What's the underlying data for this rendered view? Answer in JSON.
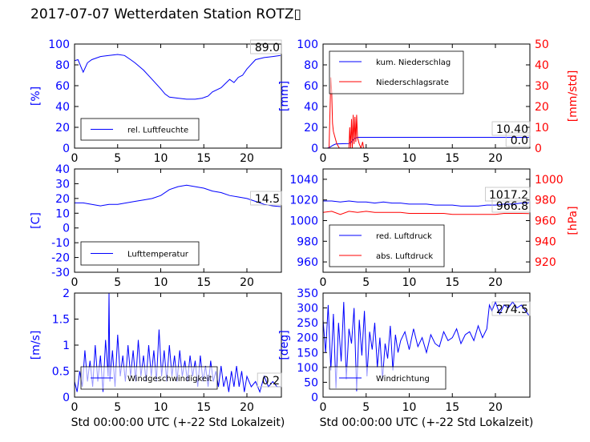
{
  "figure": {
    "title": "2017-07-07 Wetterdaten Station ROTZ▯",
    "colors": {
      "left_axis": "#0000ff",
      "right_axis": "#ff0000",
      "frame": "#000000"
    }
  },
  "chart_data": [
    {
      "id": "humidity",
      "type": "line",
      "ylabel": "[%]",
      "xlim": [
        0,
        24
      ],
      "ylim": [
        0,
        100
      ],
      "xticks": [
        0,
        5,
        10,
        15,
        20
      ],
      "yticks": [
        0,
        20,
        40,
        60,
        80,
        100
      ],
      "legend": {
        "placement": "lower-left",
        "entries": [
          "rel. Luftfeuchte"
        ]
      },
      "annotations": [
        "89.0"
      ],
      "series": [
        {
          "name": "rel. Luftfeuchte",
          "color": "#0000ff",
          "x": [
            0,
            0.4,
            0.8,
            1.0,
            1.5,
            2,
            3,
            4,
            5,
            5.8,
            6.5,
            7,
            8,
            9,
            10,
            10.5,
            11,
            12,
            13,
            14,
            14.8,
            15.5,
            16,
            17,
            17.5,
            18,
            18.5,
            19,
            19.5,
            20,
            21,
            22,
            23,
            23.9
          ],
          "y": [
            84,
            85,
            77,
            73,
            82,
            85,
            88,
            89,
            90,
            89,
            85,
            82,
            75,
            66,
            57,
            52,
            49,
            48,
            47,
            47,
            48,
            50,
            54,
            58,
            62,
            66,
            63,
            68,
            70,
            76,
            85,
            87,
            88,
            89
          ]
        }
      ]
    },
    {
      "id": "precipitation",
      "type": "line",
      "ylabel": "[mm]",
      "y2label": "[mm/std]",
      "xlim": [
        0,
        24
      ],
      "ylim": [
        0,
        100
      ],
      "y2lim": [
        0,
        50
      ],
      "xticks": [
        0,
        5,
        10,
        15,
        20
      ],
      "yticks": [
        0,
        20,
        40,
        60,
        80,
        100
      ],
      "y2ticks": [
        0,
        10,
        20,
        30,
        40,
        50
      ],
      "legend": {
        "placement": "top-left",
        "entries": [
          "kum. Niederschlag",
          "Niederschlagsrate"
        ]
      },
      "annotations": [
        "10.40",
        "0.0"
      ],
      "series": [
        {
          "name": "kum. Niederschlag",
          "color": "#0000ff",
          "axis": "left",
          "x": [
            0,
            0.5,
            0.8,
            1.2,
            1.5,
            3,
            3.3,
            3.6,
            4,
            5,
            10,
            15,
            20,
            23.9
          ],
          "y": [
            0,
            0,
            1,
            3,
            4,
            4.5,
            6,
            9,
            10.4,
            10.4,
            10.4,
            10.4,
            10.4,
            10.4
          ]
        },
        {
          "name": "Niederschlagsrate",
          "color": "#ff0000",
          "axis": "right",
          "x": [
            0,
            0.7,
            0.9,
            1.0,
            1.1,
            1.2,
            1.4,
            1.6,
            1.9,
            2.0,
            2.2,
            2.5,
            3.0,
            3.1,
            3.2,
            3.3,
            3.4,
            3.5,
            3.6,
            3.7,
            3.8,
            3.9,
            4.0,
            4.2,
            4.4,
            4.6,
            4.7,
            4.8,
            5,
            23.9
          ],
          "y": [
            0,
            0,
            34,
            27,
            12,
            8,
            5,
            2,
            0,
            0,
            0,
            0,
            0,
            10,
            0,
            14,
            0,
            16,
            2,
            15,
            3,
            16,
            5,
            2,
            0,
            3,
            0,
            0,
            0,
            0
          ]
        }
      ]
    },
    {
      "id": "temperature",
      "type": "line",
      "ylabel": "[C]",
      "xlim": [
        0,
        24
      ],
      "ylim": [
        -30,
        40
      ],
      "xticks": [
        0,
        5,
        10,
        15,
        20
      ],
      "yticks": [
        -30,
        -20,
        -10,
        0,
        10,
        20,
        30,
        40
      ],
      "legend": {
        "placement": "lower-left",
        "entries": [
          "Lufttemperatur"
        ]
      },
      "annotations": [
        "14.5"
      ],
      "series": [
        {
          "name": "Lufttemperatur",
          "color": "#0000ff",
          "x": [
            0,
            1,
            2,
            3,
            4,
            5,
            6,
            7,
            8,
            9,
            10,
            11,
            12,
            13,
            14,
            15,
            16,
            17,
            18,
            19,
            20,
            21,
            22,
            23,
            23.9
          ],
          "y": [
            17,
            17,
            16,
            15,
            16,
            16,
            17,
            18,
            19,
            20,
            22,
            26,
            28,
            29,
            28,
            27,
            25,
            24,
            22,
            21,
            20,
            18,
            16,
            15,
            14.5
          ]
        }
      ]
    },
    {
      "id": "pressure",
      "type": "line",
      "y2label": "[hPa]",
      "xlim": [
        0,
        24
      ],
      "ylim": [
        950,
        1050
      ],
      "y2lim": [
        910,
        1010
      ],
      "xticks": [
        0,
        5,
        10,
        15,
        20
      ],
      "yticks": [
        960,
        980,
        1000,
        1020,
        1040
      ],
      "y2ticks": [
        920,
        940,
        960,
        980,
        1000
      ],
      "legend": {
        "placement": "lower-left",
        "entries": [
          "red. Luftdruck",
          "abs. Luftdruck"
        ]
      },
      "annotations": [
        "1017.2",
        "966.8"
      ],
      "series": [
        {
          "name": "red. Luftdruck",
          "color": "#0000ff",
          "axis": "left",
          "x": [
            0,
            1,
            2,
            3,
            4,
            5,
            6,
            7,
            8,
            9,
            10,
            11,
            12,
            13,
            14,
            15,
            16,
            17,
            18,
            19,
            20,
            21,
            22,
            23,
            23.9
          ],
          "y": [
            1019,
            1019,
            1018,
            1019,
            1018,
            1018,
            1017,
            1018,
            1017,
            1017,
            1016,
            1016,
            1016,
            1015,
            1015,
            1015,
            1014,
            1014,
            1014,
            1015,
            1015,
            1016,
            1016,
            1017,
            1017.2
          ]
        },
        {
          "name": "abs. Luftdruck",
          "color": "#ff0000",
          "axis": "right",
          "x": [
            0,
            1,
            2,
            3,
            4,
            5,
            6,
            7,
            8,
            9,
            10,
            11,
            12,
            13,
            14,
            15,
            16,
            17,
            18,
            19,
            20,
            21,
            22,
            23,
            23.9
          ],
          "y": [
            968,
            969,
            966,
            969,
            968,
            969,
            968,
            968,
            968,
            968,
            967,
            967,
            967,
            967,
            967,
            966,
            966,
            966,
            966,
            966,
            966,
            967,
            967,
            967,
            966.8
          ]
        }
      ]
    },
    {
      "id": "wind-speed",
      "type": "line",
      "ylabel": "[m/s]",
      "xlabel": "Std 00:00:00 UTC (+-22 Std Lokalzeit)",
      "xlim": [
        0,
        24
      ],
      "ylim": [
        0,
        2.0
      ],
      "xticks": [
        0,
        5,
        10,
        15,
        20
      ],
      "yticks": [
        0.0,
        0.5,
        1.0,
        1.5,
        2.0
      ],
      "legend": {
        "placement": "lower-left",
        "entries": [
          "Windgeschwindigkeit"
        ]
      },
      "annotations": [
        "0.2"
      ],
      "series": [
        {
          "name": "Windgeschwindigkeit",
          "color": "#0000ff",
          "x": [
            0,
            0.3,
            0.6,
            0.9,
            1.2,
            1.5,
            1.8,
            2.1,
            2.4,
            2.7,
            3.0,
            3.3,
            3.6,
            3.9,
            4.0,
            4.1,
            4.4,
            4.7,
            5.0,
            5.3,
            5.6,
            5.9,
            6.2,
            6.5,
            6.8,
            7.1,
            7.4,
            7.7,
            8.0,
            8.3,
            8.6,
            8.9,
            9.2,
            9.5,
            9.8,
            10.1,
            10.4,
            10.7,
            11.0,
            11.3,
            11.6,
            11.9,
            12.2,
            12.5,
            12.8,
            13.1,
            13.4,
            13.7,
            14.0,
            14.3,
            14.6,
            14.9,
            15.2,
            15.5,
            15.8,
            16.1,
            16.4,
            16.7,
            17.0,
            17.3,
            17.6,
            17.9,
            18.2,
            18.5,
            18.8,
            19.1,
            19.4,
            19.7,
            20.0,
            20.5,
            21.0,
            21.5,
            22.0,
            22.5,
            23.0,
            23.5,
            23.9
          ],
          "y": [
            0.3,
            0.1,
            0.5,
            0.2,
            0.9,
            0.3,
            0.7,
            0.2,
            1.0,
            0.3,
            0.8,
            0.1,
            1.1,
            0.4,
            2.0,
            0.3,
            0.9,
            0.2,
            1.2,
            0.4,
            0.8,
            0.3,
            1.0,
            0.4,
            0.9,
            0.3,
            1.1,
            0.4,
            0.8,
            0.3,
            1.0,
            0.4,
            0.9,
            0.3,
            1.3,
            0.4,
            0.9,
            0.3,
            1.0,
            0.4,
            0.8,
            0.3,
            0.9,
            0.4,
            0.7,
            0.3,
            0.8,
            0.4,
            0.7,
            0.2,
            0.8,
            0.3,
            0.6,
            0.2,
            0.7,
            0.3,
            0.5,
            0.2,
            0.6,
            0.2,
            0.4,
            0.1,
            0.5,
            0.2,
            0.6,
            0.2,
            0.5,
            0.1,
            0.4,
            0.2,
            0.3,
            0.1,
            0.4,
            0.2,
            0.3,
            0.2,
            0.2
          ]
        }
      ]
    },
    {
      "id": "wind-direction",
      "type": "line",
      "ylabel": "[deg]",
      "xlabel": "Std 00:00:00 UTC (+-22 Std Lokalzeit)",
      "xlim": [
        0,
        24
      ],
      "ylim": [
        0,
        350
      ],
      "xticks": [
        0,
        5,
        10,
        15,
        20
      ],
      "yticks": [
        0,
        50,
        100,
        150,
        200,
        250,
        300,
        350
      ],
      "legend": {
        "placement": "lower-left",
        "entries": [
          "Windrichtung"
        ]
      },
      "annotations": [
        "274.5"
      ],
      "series": [
        {
          "name": "Windrichtung",
          "color": "#0000ff",
          "x": [
            0,
            0.3,
            0.6,
            0.9,
            1.2,
            1.5,
            1.8,
            2.1,
            2.4,
            2.7,
            3.0,
            3.3,
            3.6,
            3.9,
            4.2,
            4.5,
            4.8,
            5.1,
            5.4,
            5.7,
            6.0,
            6.3,
            6.6,
            6.9,
            7.2,
            7.5,
            7.8,
            8.1,
            8.4,
            8.7,
            9.0,
            9.5,
            10.0,
            10.5,
            11.0,
            11.5,
            12.0,
            12.5,
            13.0,
            13.5,
            14.0,
            14.5,
            15.0,
            15.5,
            16.0,
            16.5,
            17.0,
            17.5,
            18.0,
            18.5,
            19.0,
            19.3,
            19.6,
            20.0,
            20.5,
            21.0,
            21.5,
            22.0,
            22.5,
            23.0,
            23.5,
            23.9
          ],
          "y": [
            260,
            150,
            310,
            90,
            280,
            30,
            250,
            120,
            320,
            60,
            230,
            180,
            300,
            20,
            260,
            140,
            290,
            70,
            220,
            160,
            250,
            100,
            200,
            60,
            180,
            130,
            240,
            90,
            210,
            150,
            190,
            220,
            160,
            230,
            170,
            200,
            150,
            210,
            180,
            170,
            220,
            190,
            200,
            230,
            180,
            210,
            220,
            190,
            240,
            200,
            230,
            310,
            290,
            320,
            280,
            310,
            300,
            320,
            300,
            310,
            290,
            275
          ]
        }
      ]
    }
  ]
}
